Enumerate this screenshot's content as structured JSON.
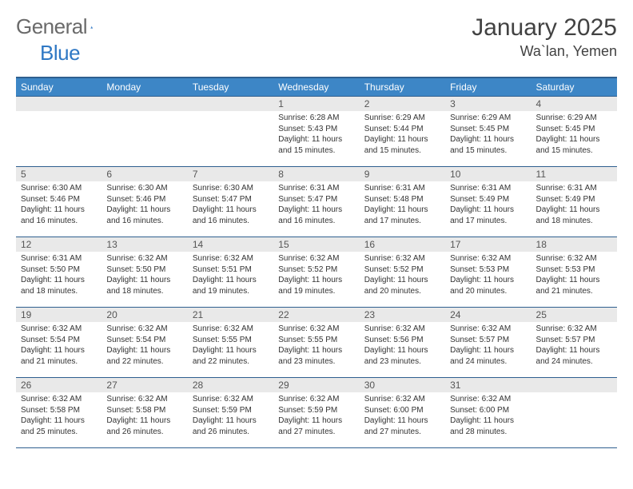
{
  "brand": {
    "left": "General",
    "right": "Blue"
  },
  "title": "January 2025",
  "location": "Wa`lan, Yemen",
  "colors": {
    "header_bg": "#3d86c6",
    "header_border": "#2f5f8f",
    "daynum_bg": "#e9e9e9",
    "text": "#333333",
    "muted": "#555555",
    "brand_gray": "#6a6a6a",
    "brand_blue": "#2f78c4",
    "page_bg": "#ffffff"
  },
  "weekdays": [
    "Sunday",
    "Monday",
    "Tuesday",
    "Wednesday",
    "Thursday",
    "Friday",
    "Saturday"
  ],
  "leading_blank_cells": 3,
  "days": [
    {
      "n": 1,
      "sunrise": "6:28 AM",
      "sunset": "5:43 PM",
      "daylight": "11 hours and 15 minutes."
    },
    {
      "n": 2,
      "sunrise": "6:29 AM",
      "sunset": "5:44 PM",
      "daylight": "11 hours and 15 minutes."
    },
    {
      "n": 3,
      "sunrise": "6:29 AM",
      "sunset": "5:45 PM",
      "daylight": "11 hours and 15 minutes."
    },
    {
      "n": 4,
      "sunrise": "6:29 AM",
      "sunset": "5:45 PM",
      "daylight": "11 hours and 15 minutes."
    },
    {
      "n": 5,
      "sunrise": "6:30 AM",
      "sunset": "5:46 PM",
      "daylight": "11 hours and 16 minutes."
    },
    {
      "n": 6,
      "sunrise": "6:30 AM",
      "sunset": "5:46 PM",
      "daylight": "11 hours and 16 minutes."
    },
    {
      "n": 7,
      "sunrise": "6:30 AM",
      "sunset": "5:47 PM",
      "daylight": "11 hours and 16 minutes."
    },
    {
      "n": 8,
      "sunrise": "6:31 AM",
      "sunset": "5:47 PM",
      "daylight": "11 hours and 16 minutes."
    },
    {
      "n": 9,
      "sunrise": "6:31 AM",
      "sunset": "5:48 PM",
      "daylight": "11 hours and 17 minutes."
    },
    {
      "n": 10,
      "sunrise": "6:31 AM",
      "sunset": "5:49 PM",
      "daylight": "11 hours and 17 minutes."
    },
    {
      "n": 11,
      "sunrise": "6:31 AM",
      "sunset": "5:49 PM",
      "daylight": "11 hours and 18 minutes."
    },
    {
      "n": 12,
      "sunrise": "6:31 AM",
      "sunset": "5:50 PM",
      "daylight": "11 hours and 18 minutes."
    },
    {
      "n": 13,
      "sunrise": "6:32 AM",
      "sunset": "5:50 PM",
      "daylight": "11 hours and 18 minutes."
    },
    {
      "n": 14,
      "sunrise": "6:32 AM",
      "sunset": "5:51 PM",
      "daylight": "11 hours and 19 minutes."
    },
    {
      "n": 15,
      "sunrise": "6:32 AM",
      "sunset": "5:52 PM",
      "daylight": "11 hours and 19 minutes."
    },
    {
      "n": 16,
      "sunrise": "6:32 AM",
      "sunset": "5:52 PM",
      "daylight": "11 hours and 20 minutes."
    },
    {
      "n": 17,
      "sunrise": "6:32 AM",
      "sunset": "5:53 PM",
      "daylight": "11 hours and 20 minutes."
    },
    {
      "n": 18,
      "sunrise": "6:32 AM",
      "sunset": "5:53 PM",
      "daylight": "11 hours and 21 minutes."
    },
    {
      "n": 19,
      "sunrise": "6:32 AM",
      "sunset": "5:54 PM",
      "daylight": "11 hours and 21 minutes."
    },
    {
      "n": 20,
      "sunrise": "6:32 AM",
      "sunset": "5:54 PM",
      "daylight": "11 hours and 22 minutes."
    },
    {
      "n": 21,
      "sunrise": "6:32 AM",
      "sunset": "5:55 PM",
      "daylight": "11 hours and 22 minutes."
    },
    {
      "n": 22,
      "sunrise": "6:32 AM",
      "sunset": "5:55 PM",
      "daylight": "11 hours and 23 minutes."
    },
    {
      "n": 23,
      "sunrise": "6:32 AM",
      "sunset": "5:56 PM",
      "daylight": "11 hours and 23 minutes."
    },
    {
      "n": 24,
      "sunrise": "6:32 AM",
      "sunset": "5:57 PM",
      "daylight": "11 hours and 24 minutes."
    },
    {
      "n": 25,
      "sunrise": "6:32 AM",
      "sunset": "5:57 PM",
      "daylight": "11 hours and 24 minutes."
    },
    {
      "n": 26,
      "sunrise": "6:32 AM",
      "sunset": "5:58 PM",
      "daylight": "11 hours and 25 minutes."
    },
    {
      "n": 27,
      "sunrise": "6:32 AM",
      "sunset": "5:58 PM",
      "daylight": "11 hours and 26 minutes."
    },
    {
      "n": 28,
      "sunrise": "6:32 AM",
      "sunset": "5:59 PM",
      "daylight": "11 hours and 26 minutes."
    },
    {
      "n": 29,
      "sunrise": "6:32 AM",
      "sunset": "5:59 PM",
      "daylight": "11 hours and 27 minutes."
    },
    {
      "n": 30,
      "sunrise": "6:32 AM",
      "sunset": "6:00 PM",
      "daylight": "11 hours and 27 minutes."
    },
    {
      "n": 31,
      "sunrise": "6:32 AM",
      "sunset": "6:00 PM",
      "daylight": "11 hours and 28 minutes."
    }
  ],
  "labels": {
    "sunrise": "Sunrise:",
    "sunset": "Sunset:",
    "daylight": "Daylight:"
  }
}
